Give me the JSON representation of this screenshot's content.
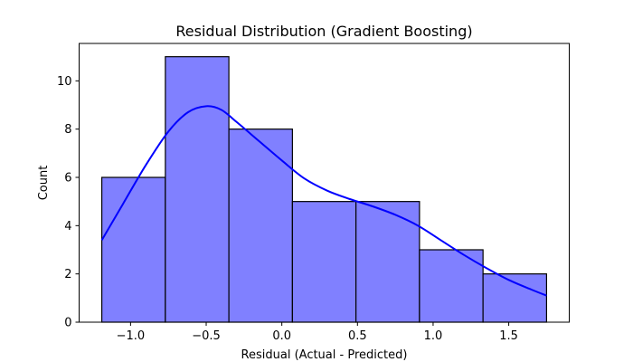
{
  "chart_data": {
    "type": "bar",
    "title": "Residual Distribution (Gradient Boosting)",
    "xlabel": "Residual (Actual - Predicted)",
    "ylabel": "Count",
    "bin_edges": [
      -1.19,
      -0.77,
      -0.35,
      0.07,
      0.49,
      0.91,
      1.33,
      1.75
    ],
    "counts": [
      6,
      11,
      8,
      5,
      5,
      3,
      2
    ],
    "xlim": [
      -1.34,
      1.9
    ],
    "ylim": [
      0,
      11.55
    ],
    "xticks": [
      -1.0,
      -0.5,
      0.0,
      0.5,
      1.0,
      1.5
    ],
    "xtick_labels": [
      "−1.0",
      "−0.5",
      "0.0",
      "0.5",
      "1.0",
      "1.5"
    ],
    "yticks": [
      0,
      2,
      4,
      6,
      8,
      10
    ],
    "ytick_labels": [
      "0",
      "2",
      "4",
      "6",
      "8",
      "10"
    ],
    "kde": {
      "x": [
        -1.19,
        -1.05,
        -0.9,
        -0.75,
        -0.62,
        -0.5,
        -0.4,
        -0.3,
        -0.15,
        0.0,
        0.15,
        0.3,
        0.45,
        0.6,
        0.75,
        0.9,
        1.05,
        1.2,
        1.35,
        1.5,
        1.65,
        1.75
      ],
      "y": [
        3.4,
        4.9,
        6.5,
        7.9,
        8.7,
        8.95,
        8.8,
        8.3,
        7.5,
        6.7,
        5.95,
        5.45,
        5.1,
        4.8,
        4.45,
        4.0,
        3.4,
        2.8,
        2.25,
        1.75,
        1.35,
        1.1
      ]
    },
    "colors": {
      "bar_fill": "#8080ff",
      "bar_edge": "#000000",
      "kde": "#0000ff"
    },
    "grid": false
  }
}
